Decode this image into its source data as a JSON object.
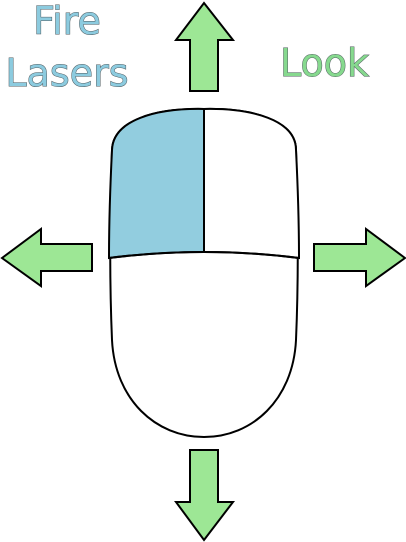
{
  "labels": {
    "fire_line1": "Fire",
    "fire_line2": "Lasers",
    "look": "Look"
  },
  "colors": {
    "fire_text": "#8ccbdf",
    "look_text": "#86d98e",
    "left_button_fill": "#92cddf",
    "arrow_fill": "#9de795",
    "outline": "#000000",
    "background": "#ffffff"
  },
  "icons": {
    "mouse": "computer-mouse-icon",
    "arrows": [
      "arrow-up-icon",
      "arrow-left-icon",
      "arrow-right-icon",
      "arrow-down-icon"
    ]
  },
  "highlighted_button": "left-mouse-button"
}
